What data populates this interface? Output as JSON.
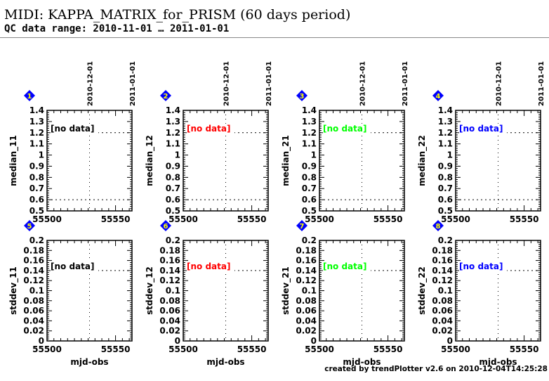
{
  "header": {
    "title": "MIDI: KAPPA_MATRIX_for_PRISM (60 days period)",
    "subtitle": "QC data range: 2010-11-01 … 2011-01-01"
  },
  "footer": "created by trendPlotter v2.6 on 2010-12-04T14:25:28",
  "chart_data": [
    {
      "type": "scatter",
      "panel": "1",
      "ylabel": "median_11",
      "xlabel": "",
      "ylim": [
        0.5,
        1.4
      ],
      "yticks": [
        "0.5",
        "0.6",
        "0.7",
        "0.8",
        "0.9",
        "1",
        "1.1",
        "1.2",
        "1.3",
        "1.4"
      ],
      "ref_lines": [
        1.2,
        0.6
      ],
      "note": "[no data]",
      "color": "#000000",
      "points": []
    },
    {
      "type": "scatter",
      "panel": "2",
      "ylabel": "median_12",
      "xlabel": "",
      "ylim": [
        0.5,
        1.4
      ],
      "yticks": [
        "0.5",
        "0.6",
        "0.7",
        "0.8",
        "0.9",
        "1",
        "1.1",
        "1.2",
        "1.3",
        "1.4"
      ],
      "ref_lines": [
        1.2,
        0.6
      ],
      "note": "[no data]",
      "color": "#ff0000",
      "points": []
    },
    {
      "type": "scatter",
      "panel": "3",
      "ylabel": "median_21",
      "xlabel": "",
      "ylim": [
        0.5,
        1.4
      ],
      "yticks": [
        "0.5",
        "0.6",
        "0.7",
        "0.8",
        "0.9",
        "1",
        "1.1",
        "1.2",
        "1.3",
        "1.4"
      ],
      "ref_lines": [
        1.2,
        0.6
      ],
      "note": "[no data]",
      "color": "#00ff00",
      "points": []
    },
    {
      "type": "scatter",
      "panel": "4",
      "ylabel": "median_22",
      "xlabel": "",
      "ylim": [
        0.5,
        1.4
      ],
      "yticks": [
        "0.5",
        "0.6",
        "0.7",
        "0.8",
        "0.9",
        "1",
        "1.1",
        "1.2",
        "1.3",
        "1.4"
      ],
      "ref_lines": [
        1.2,
        0.6
      ],
      "note": "[no data]",
      "color": "#0000ff",
      "points": []
    },
    {
      "type": "scatter",
      "panel": "5",
      "ylabel": "stddev_11",
      "xlabel": "mjd-obs",
      "ylim": [
        0,
        0.2
      ],
      "yticks": [
        "0",
        "0.02",
        "0.04",
        "0.06",
        "0.08",
        "0.1",
        "0.12",
        "0.14",
        "0.16",
        "0.18",
        "0.2"
      ],
      "ref_lines": [
        0.14
      ],
      "note": "[no data]",
      "color": "#000000",
      "points": []
    },
    {
      "type": "scatter",
      "panel": "6",
      "ylabel": "stddev_12",
      "xlabel": "mjd-obs",
      "ylim": [
        0,
        0.2
      ],
      "yticks": [
        "0",
        "0.02",
        "0.04",
        "0.06",
        "0.08",
        "0.1",
        "0.12",
        "0.14",
        "0.16",
        "0.18",
        "0.2"
      ],
      "ref_lines": [
        0.14
      ],
      "note": "[no data]",
      "color": "#ff0000",
      "points": []
    },
    {
      "type": "scatter",
      "panel": "7",
      "ylabel": "stddev_21",
      "xlabel": "mjd-obs",
      "ylim": [
        0,
        0.2
      ],
      "yticks": [
        "0",
        "0.02",
        "0.04",
        "0.06",
        "0.08",
        "0.1",
        "0.12",
        "0.14",
        "0.16",
        "0.18",
        "0.2"
      ],
      "ref_lines": [
        0.14
      ],
      "note": "[no data]",
      "color": "#00ff00",
      "points": []
    },
    {
      "type": "scatter",
      "panel": "8",
      "ylabel": "stddev_22",
      "xlabel": "mjd-obs",
      "ylim": [
        0,
        0.2
      ],
      "yticks": [
        "0",
        "0.02",
        "0.04",
        "0.06",
        "0.08",
        "0.1",
        "0.12",
        "0.14",
        "0.16",
        "0.18",
        "0.2"
      ],
      "ref_lines": [
        0.14
      ],
      "note": "[no data]",
      "color": "#0000ff",
      "points": []
    }
  ],
  "x_axis": {
    "xlim": [
      55500,
      55562
    ],
    "xticks": [
      {
        "value": 55500,
        "label": "55500"
      },
      {
        "value": 55550,
        "label": "55550"
      }
    ],
    "date_markers": [
      {
        "value": 55531,
        "label": "2010-12-01"
      },
      {
        "value": 55562,
        "label": "2011-01-01"
      }
    ]
  },
  "colors": {
    "marker_fill": "#0000ff",
    "marker_text": "#ffff00",
    "ref_line": "#000000"
  }
}
